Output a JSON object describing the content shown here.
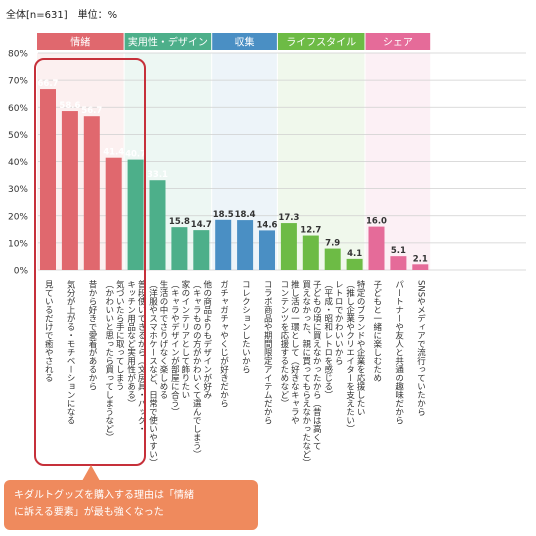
{
  "header": {
    "note": "全体[n=631]　単位：%"
  },
  "callout": {
    "line1": "キダルトグッズを購入する理由は「情緒",
    "line2": "に訴える要素」が最も強くなった"
  },
  "colors": {
    "情緒": "#e0686e",
    "実用性・デザイン": "#4daf8a",
    "収集": "#4a8fc4",
    "ライフスタイル": "#6dbb45",
    "シェア": "#e56b99"
  },
  "chart_data": {
    "type": "bar",
    "ylim": [
      0,
      80
    ],
    "yticks": [
      "0%",
      "10%",
      "20%",
      "30%",
      "40%",
      "50%",
      "60%",
      "70%",
      "80%"
    ],
    "groups": [
      {
        "name": "情緒",
        "start": 0,
        "count": 4
      },
      {
        "name": "実用性・デザイン",
        "start": 4,
        "count": 4
      },
      {
        "name": "収集",
        "start": 8,
        "count": 3
      },
      {
        "name": "ライフスタイル",
        "start": 11,
        "count": 4
      },
      {
        "name": "シェア",
        "start": 15,
        "count": 3
      }
    ],
    "categories": [
      "見ているだけで癒やされる",
      "気分が上がる・モチベーションになる",
      "昔から好きで愛着があるから",
      "気づいたら手に取ってしまう\n（かわいいと思ったら買ってしまうなど）",
      "普段使いできるから（文房具・バッグ・\nキッチン用品など実用性がある）",
      "生活の中でさりげなく楽しめる\n（洋服やスマホケースなど、日常で使いやすい）",
      "家のインテリアとして飾りたい\n（キャラやデザインが部屋に合う）",
      "他の商品よりもデザインが好み\n（キャラものの方がかわいくて選んでしまう）",
      "ガチャガチャやくじが好きだから",
      "コレクションしたいから",
      "コラボ商品や期間限定アイテムだから",
      "推し活の一環として（好きなキャラや\nコンテンツを応援するためなど）",
      "子どもの頃に買えなかったから（昔は高くて\n買えなかった、親に買ってもらえなかったなど）",
      "レトロでかわいいから\n（平成・昭和レトロを感じる）",
      "特定のブランドや企業を応援したい\n（推し企業やクリエイターを支えたい）",
      "子どもと一緒に楽しむため",
      "パートナーや友人と共通の趣味だから",
      "SNSやメディアで流行っていたから"
    ],
    "values": [
      66.7,
      58.6,
      56.7,
      41.4,
      40.7,
      33.1,
      15.8,
      14.7,
      18.5,
      18.4,
      14.6,
      17.3,
      12.7,
      7.9,
      4.1,
      16.0,
      5.1,
      2.1
    ],
    "value_labels": [
      "66.7",
      "58.6",
      "56.7",
      "41.4",
      "40.7",
      "33.1",
      "15.8",
      "14.7",
      "18.5",
      "18.4",
      "14.6",
      "17.3",
      "12.7",
      "7.9",
      "4.1",
      "16.0",
      "5.1",
      "2.1"
    ]
  }
}
